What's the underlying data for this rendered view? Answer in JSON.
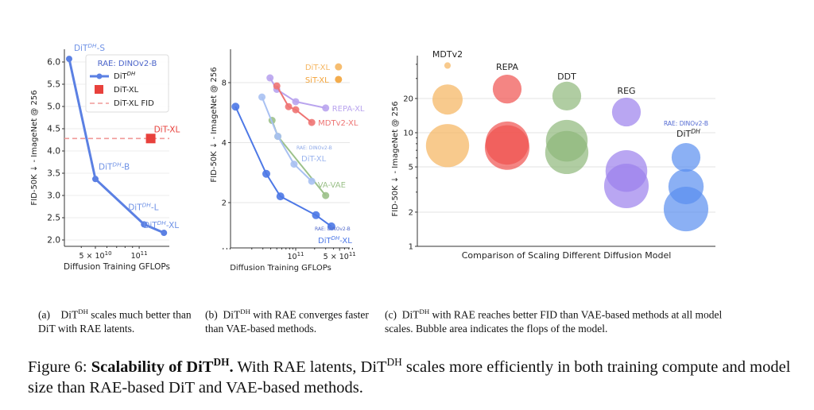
{
  "chart_data": [
    {
      "id": "a",
      "type": "line",
      "xlabel": "Diffusion Training GFLOPs",
      "ylabel": "FID-50K ↓ - ImageNet @ 256",
      "xscale": "log",
      "xlim": [
        30000000000.0,
        160000000000.0
      ],
      "ylim": [
        1.95,
        6.2
      ],
      "xticks": [
        {
          "value": 50000000000.0,
          "label": "5 × 10",
          "exp": "10"
        },
        {
          "value": 100000000000.0,
          "label": "10",
          "exp": "11"
        }
      ],
      "yticks": [
        2.0,
        2.5,
        3.0,
        3.5,
        4.0,
        4.5,
        5.0,
        5.5,
        6.0
      ],
      "grid": "horizontal",
      "legend": {
        "placement": "top-right",
        "title": "RAE: DINOv2-B",
        "entries": [
          {
            "base": "DiT",
            "sup": "DH",
            "suffix": "",
            "marker": "line"
          },
          {
            "base": "DiT-XL",
            "sup": "",
            "suffix": "",
            "marker": "square"
          },
          {
            "base": "DiT-XL FID",
            "sup": "",
            "suffix": "",
            "marker": "dashed"
          }
        ]
      },
      "series": [
        {
          "name": "DiT^DH",
          "color": "#5b80e3",
          "points": [
            {
              "x": 33000000000.0,
              "y": 6.07,
              "label": {
                "base": "DiT",
                "sup": "DH",
                "suffix": "-S"
              }
            },
            {
              "x": 50000000000.0,
              "y": 3.37,
              "label": {
                "base": "DiT",
                "sup": "DH",
                "suffix": "-B"
              }
            },
            {
              "x": 108000000000.0,
              "y": 2.35,
              "label": {
                "base": "DiT",
                "sup": "DH",
                "suffix": "-L"
              }
            },
            {
              "x": 148000000000.0,
              "y": 2.16,
              "label": {
                "base": "DiT",
                "sup": "DH",
                "suffix": "-XL"
              }
            }
          ]
        },
        {
          "name": "DiT-XL",
          "color": "#e8413c",
          "marker": "square",
          "points": [
            {
              "x": 120000000000.0,
              "y": 4.28,
              "label": {
                "base": "DiT-XL",
                "sup": "",
                "suffix": ""
              }
            }
          ]
        }
      ],
      "hline": {
        "name": "DiT-XL FID",
        "y": 4.28,
        "color": "#f19a98"
      }
    },
    {
      "id": "b",
      "type": "line",
      "xlabel": "Diffusion Training GFLOPs",
      "ylabel": "FID-50K ↓ - ImageNet @ 256",
      "xscale": "log",
      "yscale": "log",
      "xlim": [
        7000000000.0,
        800000000000.0
      ],
      "ylim": [
        1.25,
        11
      ],
      "xticks": [
        {
          "value": 100000000000.0,
          "label": "10",
          "exp": "11"
        },
        {
          "value": 500000000000.0,
          "label": "5 × 10",
          "exp": "11"
        }
      ],
      "yticks": [
        2,
        4,
        8
      ],
      "grid": "horizontal",
      "series": [
        {
          "name": "DiT-XL",
          "color": "#f5b661",
          "line": false,
          "points": [
            {
              "x": 480000000000.0,
              "y": 9.6
            }
          ]
        },
        {
          "name": "SiT-XL",
          "color": "#f2a33a",
          "line": false,
          "points": [
            {
              "x": 480000000000.0,
              "y": 8.3
            }
          ]
        },
        {
          "name": "REPA-XL",
          "color": "#b9a4ee",
          "line": true,
          "points": [
            {
              "x": 39000000000.0,
              "y": 8.45
            },
            {
              "x": 50000000000.0,
              "y": 7.4
            },
            {
              "x": 100000000000.0,
              "y": 6.42
            },
            {
              "x": 300000000000.0,
              "y": 5.97
            }
          ]
        },
        {
          "name": "MDTv2-XL",
          "color": "#ee7473",
          "line": true,
          "points": [
            {
              "x": 50000000000.0,
              "y": 7.7
            },
            {
              "x": 77000000000.0,
              "y": 6.06
            },
            {
              "x": 100000000000.0,
              "y": 5.85
            },
            {
              "x": 180000000000.0,
              "y": 5.05
            }
          ]
        },
        {
          "name": "VA-VAE",
          "color": "#9cc18a",
          "line": true,
          "points": [
            {
              "x": 42000000000.0,
              "y": 5.17
            },
            {
              "x": 52000000000.0,
              "y": 4.3
            },
            {
              "x": 300000000000.0,
              "y": 2.17
            }
          ]
        },
        {
          "name": "DiT-XL",
          "prefix": "RAE: DINOv2-B",
          "color": "#a9c1f2",
          "line": true,
          "points": [
            {
              "x": 29000000000.0,
              "y": 6.77
            },
            {
              "x": 52000000000.0,
              "y": 4.3
            },
            {
              "x": 94000000000.0,
              "y": 3.12
            },
            {
              "x": 180000000000.0,
              "y": 2.56
            }
          ]
        },
        {
          "name": "DiT^DH-XL",
          "prefix": "RAE: DINOv2-B",
          "label": {
            "base": "DiT",
            "sup": "DH",
            "suffix": "-XL"
          },
          "color": "#4d78e6",
          "line": true,
          "points": [
            {
              "x": 11000000000.0,
              "y": 6.06
            },
            {
              "x": 34000000000.0,
              "y": 2.79
            },
            {
              "x": 57000000000.0,
              "y": 2.15
            },
            {
              "x": 210000000000.0,
              "y": 1.73
            },
            {
              "x": 370000000000.0,
              "y": 1.52
            }
          ]
        }
      ]
    },
    {
      "id": "c",
      "type": "scatter",
      "xlabel": "Comparison of Scaling Different Diffusion Model",
      "ylabel": "FID-50K ↓ - ImageNet @ 256",
      "yscale": "log",
      "ylim": [
        1,
        45
      ],
      "yticks": [
        1,
        2,
        5,
        10,
        20
      ],
      "grid": "horizontal",
      "note": "Bubble area indicates the flops of the model",
      "categories": [
        {
          "name": "MDTv2",
          "color": "#f5b35c",
          "bubbles": [
            {
              "y": 39,
              "relative_flops": 1
            },
            {
              "y": 19.6,
              "relative_flops": 22
            },
            {
              "y": 7.7,
              "relative_flops": 45
            }
          ]
        },
        {
          "name": "REPA",
          "color": "#f0514e",
          "bubbles": [
            {
              "y": 24.2,
              "relative_flops": 20
            },
            {
              "y": 8.1,
              "relative_flops": 45
            },
            {
              "y": 7.4,
              "relative_flops": 48
            }
          ]
        },
        {
          "name": "DDT",
          "color": "#8fb87a",
          "bubbles": [
            {
              "y": 21,
              "relative_flops": 20
            },
            {
              "y": 8.5,
              "relative_flops": 42
            },
            {
              "y": 6.7,
              "relative_flops": 45
            }
          ]
        },
        {
          "name": "REG",
          "color": "#9b80ec",
          "bubbles": [
            {
              "y": 15.2,
              "relative_flops": 20
            },
            {
              "y": 4.6,
              "relative_flops": 42
            },
            {
              "y": 3.4,
              "relative_flops": 48
            }
          ]
        },
        {
          "name": "DiT^DH",
          "prefix": "RAE: DINOv2-B",
          "label": {
            "base": "DiT",
            "sup": "DH",
            "suffix": ""
          },
          "color": "#5a8ef0",
          "bubbles": [
            {
              "y": 6.06,
              "relative_flops": 20
            },
            {
              "y": 3.35,
              "relative_flops": 30
            },
            {
              "y": 2.13,
              "relative_flops": 48
            }
          ]
        }
      ]
    }
  ],
  "captions": {
    "a": {
      "tag": "(a)",
      "base": "DiT",
      "sup": "DH",
      "rest": " scales much better than DiT with RAE latents."
    },
    "b": {
      "tag": "(b)",
      "base": "DiT",
      "sup": "DH",
      "rest": " with RAE converges faster than VAE-based methods."
    },
    "c": {
      "tag": "(c)",
      "base": "DiT",
      "sup": "DH",
      "rest": " with RAE reaches better FID than VAE-based methods at all model scales. Bubble area indicates the flops of the model."
    }
  },
  "figure_caption": {
    "prefix": "Figure 6: ",
    "bold": "Scalability of DiT",
    "bold_sup": "DH",
    "bold_end": ".",
    "t1": " With RAE latents, DiT",
    "t1_sup": "DH",
    "t2": " scales more efficiently in both training compute and model size than RAE-based DiT and VAE-based methods."
  }
}
